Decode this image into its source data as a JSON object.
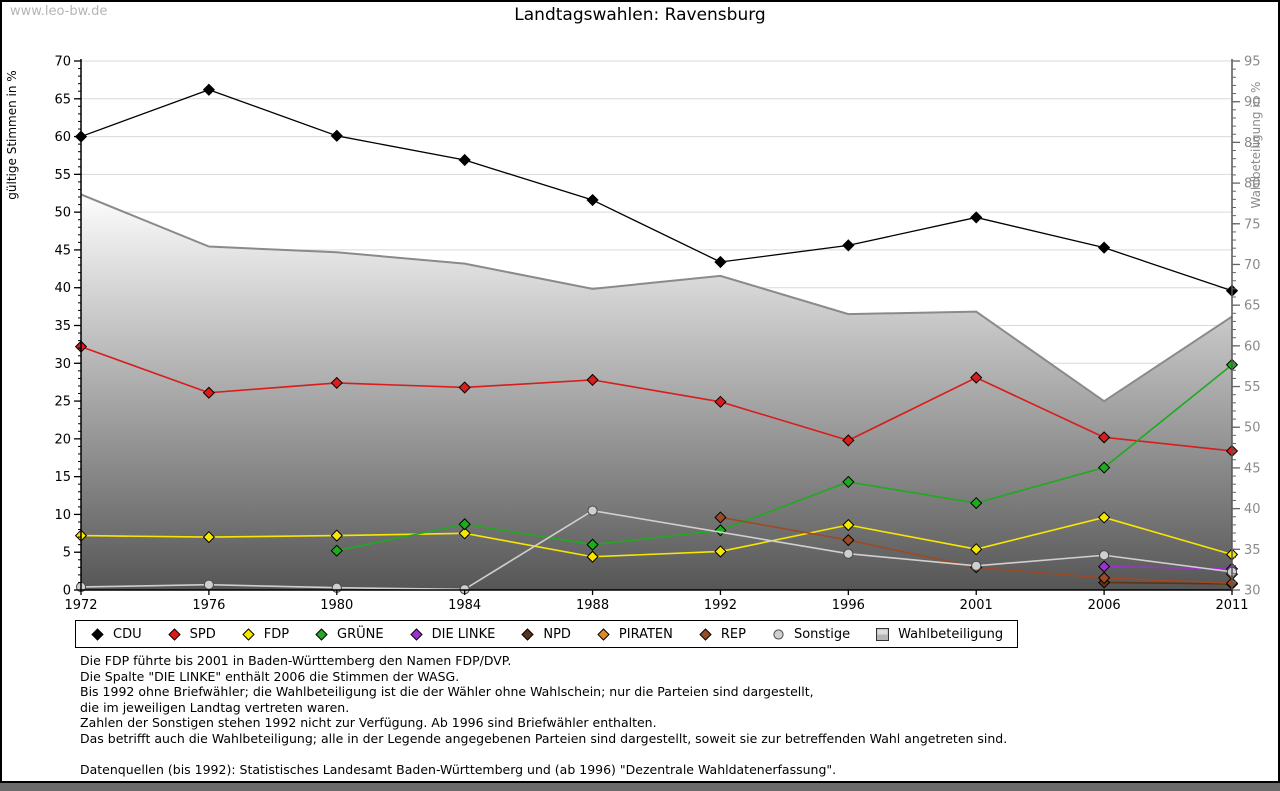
{
  "page": {
    "watermark": "www.leo-bw.de",
    "title": "Landtagswahlen: Ravensburg"
  },
  "chart_data": {
    "type": "line",
    "title": "Landtagswahlen: Ravensburg",
    "x_categories": [
      "1972",
      "1976",
      "1980",
      "1984",
      "1988",
      "1992",
      "1996",
      "2001",
      "2006",
      "2011"
    ],
    "left_axis": {
      "label": "gültige Stimmen in %",
      "min": 0,
      "max": 70,
      "major_step": 5,
      "minor_step": 1
    },
    "right_axis": {
      "label": "Wahlbeteiligung in %",
      "min": 30,
      "max": 95,
      "major_step": 5,
      "minor_step": 1
    },
    "grid": true,
    "legend_position": "bottom",
    "series": [
      {
        "name": "CDU",
        "axis": "left",
        "type": "line",
        "marker": "diamond",
        "color": "#000000",
        "values": [
          60.0,
          66.2,
          60.1,
          56.9,
          51.6,
          43.4,
          45.6,
          49.3,
          45.3,
          39.6
        ]
      },
      {
        "name": "SPD",
        "axis": "left",
        "type": "line",
        "marker": "diamond",
        "color": "#d91c1c",
        "values": [
          32.2,
          26.1,
          27.4,
          26.8,
          27.8,
          24.9,
          19.8,
          28.1,
          20.2,
          18.4
        ]
      },
      {
        "name": "FDP",
        "axis": "left",
        "type": "line",
        "marker": "diamond",
        "color": "#f7e700",
        "values": [
          7.2,
          7.0,
          7.2,
          7.5,
          4.4,
          5.1,
          8.6,
          5.4,
          9.6,
          4.7
        ]
      },
      {
        "name": "GRÜNE",
        "axis": "left",
        "type": "line",
        "marker": "diamond",
        "color": "#1faa1f",
        "values": [
          null,
          null,
          5.2,
          8.7,
          6.0,
          7.9,
          14.3,
          11.5,
          16.2,
          29.8
        ]
      },
      {
        "name": "DIE LINKE",
        "axis": "left",
        "type": "line",
        "marker": "diamond",
        "color": "#9933cc",
        "values": [
          null,
          null,
          null,
          null,
          null,
          null,
          null,
          null,
          3.1,
          2.8
        ]
      },
      {
        "name": "NPD",
        "axis": "left",
        "type": "line",
        "marker": "diamond",
        "color": "#5e3317",
        "values": [
          null,
          null,
          null,
          null,
          null,
          null,
          null,
          null,
          1.0,
          0.8
        ]
      },
      {
        "name": "PIRATEN",
        "axis": "left",
        "type": "line",
        "marker": "diamond",
        "color": "#e08a1e",
        "values": [
          null,
          null,
          null,
          null,
          null,
          null,
          null,
          null,
          null,
          2.1
        ]
      },
      {
        "name": "REP",
        "axis": "left",
        "type": "line",
        "marker": "diamond",
        "color": "#9c4a24",
        "values": [
          null,
          null,
          null,
          null,
          null,
          9.6,
          6.6,
          3.0,
          1.6,
          0.9
        ]
      },
      {
        "name": "Sonstige",
        "axis": "left",
        "type": "line",
        "marker": "circle",
        "color": "#cfcfcf",
        "values": [
          0.4,
          0.7,
          0.3,
          0.1,
          10.5,
          null,
          4.8,
          3.2,
          4.6,
          2.4
        ]
      },
      {
        "name": "Wahlbeteiligung",
        "axis": "right",
        "type": "area",
        "marker": "square",
        "color": "#8a8a8a",
        "fill_top": "#ffffff",
        "fill_bottom": "#555555",
        "values": [
          78.6,
          72.2,
          71.5,
          70.1,
          67.0,
          68.6,
          63.9,
          64.2,
          53.2,
          63.6
        ]
      }
    ]
  },
  "footnotes": [
    "Die FDP führte bis 2001 in Baden-Württemberg den Namen FDP/DVP.",
    "Die Spalte \"DIE LINKE\" enthält 2006 die Stimmen der WASG.",
    "Bis 1992 ohne Briefwähler; die Wahlbeteiligung ist die der Wähler ohne Wahlschein; nur die Parteien sind dargestellt,",
    "die im jeweiligen Landtag vertreten waren.",
    "Zahlen der Sonstigen stehen 1992 nicht zur Verfügung. Ab 1996 sind Briefwähler enthalten.",
    "Das betrifft auch die Wahlbeteiligung; alle in der Legende angegebenen Parteien sind dargestellt, soweit sie zur betreffenden Wahl angetreten sind.",
    "",
    "Datenquellen (bis 1992): Statistisches Landesamt Baden-Württemberg und (ab 1996) \"Dezentrale Wahldatenerfassung\"."
  ]
}
